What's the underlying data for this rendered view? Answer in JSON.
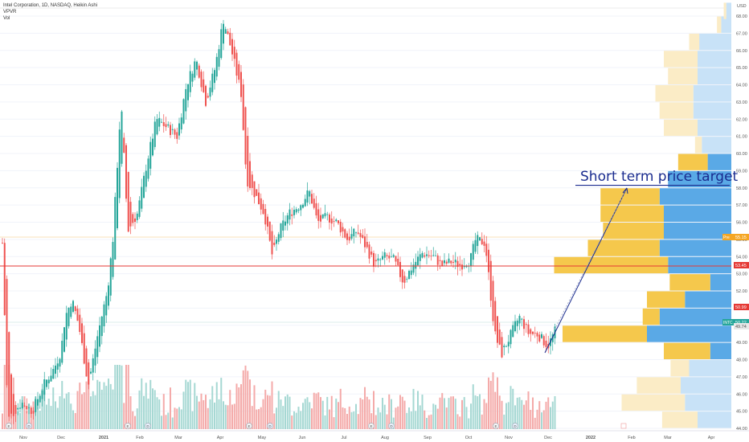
{
  "legend": {
    "symbol_line": "Intel Corporation, 1D, NASDAQ, Heikin Ashi",
    "indicator_1": "VPVR",
    "indicator_2": "Vol"
  },
  "annotation": {
    "text": "Short term price target",
    "color": "#1a2c8f"
  },
  "colors": {
    "up": "#26a69a",
    "down": "#ef5350",
    "up_volume": "#a6d8d3",
    "down_volume": "#f4aaa9",
    "vp_up": "#5aa9e6",
    "vp_down": "#f5c84c",
    "vp_up_faded": "#c8e2f7",
    "vp_down_faded": "#fbecc6",
    "support_line": "#e53935",
    "target_line": "#1a2c8f"
  },
  "chart_data": {
    "type": "candlestick",
    "title": "Intel Corporation, 1D, NASDAQ, Heikin Ashi",
    "y_axis": {
      "unit_label": "USD",
      "ticks": [
        "44.00",
        "45.00",
        "46.00",
        "47.00",
        "48.00",
        "49.00",
        "50.00",
        "51.00",
        "52.00",
        "53.00",
        "54.00",
        "55.00",
        "56.00",
        "57.00",
        "58.00",
        "59.00",
        "60.00",
        "61.00",
        "62.00",
        "63.00",
        "64.00",
        "65.00",
        "66.00",
        "67.00",
        "68.00"
      ],
      "range": [
        43.7,
        68.6
      ]
    },
    "x_axis": {
      "ticks": [
        "Nov",
        "Dec",
        "2021",
        "Feb",
        "Mar",
        "Apr",
        "May",
        "Jun",
        "Jul",
        "Aug",
        "Sep",
        "Oct",
        "Nov",
        "Dec",
        "2022",
        "Feb",
        "Mar",
        "Apr"
      ]
    },
    "price_markers": [
      {
        "label": "Pre",
        "value": "55.15",
        "color": "#f5a623"
      },
      {
        "label": "",
        "value": "53.45",
        "color": "#e53935"
      },
      {
        "label": "",
        "value": "50.99",
        "color": "#e53935"
      },
      {
        "label": "INTC",
        "value": "50.22",
        "color": "#26a69a"
      },
      {
        "label": "",
        "value": "49.74",
        "color": "#e8e8e8"
      }
    ],
    "support_level": 53.45,
    "target_level": 58.15,
    "price_path": [
      [
        "2020-10-26",
        54.8
      ],
      [
        "2020-10-30",
        44.5
      ],
      [
        "2020-11-09",
        45.5
      ],
      [
        "2020-11-17",
        45.0
      ],
      [
        "2020-11-25",
        46.5
      ],
      [
        "2020-12-03",
        47.5
      ],
      [
        "2020-12-08",
        48.5
      ],
      [
        "2020-12-11",
        50.5
      ],
      [
        "2020-12-16",
        51.5
      ],
      [
        "2020-12-21",
        50.0
      ],
      [
        "2020-12-28",
        46.5
      ],
      [
        "2021-01-04",
        49.5
      ],
      [
        "2021-01-11",
        52.0
      ],
      [
        "2021-01-15",
        55.0
      ],
      [
        "2021-01-21",
        63.0
      ],
      [
        "2021-01-26",
        55.5
      ],
      [
        "2021-02-02",
        56.5
      ],
      [
        "2021-02-09",
        59.5
      ],
      [
        "2021-02-16",
        62.0
      ],
      [
        "2021-02-24",
        61.5
      ],
      [
        "2021-03-03",
        61.0
      ],
      [
        "2021-03-10",
        64.0
      ],
      [
        "2021-03-17",
        65.5
      ],
      [
        "2021-03-24",
        63.0
      ],
      [
        "2021-03-31",
        65.0
      ],
      [
        "2021-04-06",
        67.8
      ],
      [
        "2021-04-12",
        66.0
      ],
      [
        "2021-04-19",
        63.5
      ],
      [
        "2021-04-23",
        58.5
      ],
      [
        "2021-04-30",
        57.5
      ],
      [
        "2021-05-06",
        56.5
      ],
      [
        "2021-05-12",
        54.0
      ],
      [
        "2021-05-17",
        55.5
      ],
      [
        "2021-05-24",
        56.5
      ],
      [
        "2021-06-01",
        57.0
      ],
      [
        "2021-06-08",
        57.8
      ],
      [
        "2021-06-14",
        56.0
      ],
      [
        "2021-06-21",
        56.3
      ],
      [
        "2021-06-28",
        56.0
      ],
      [
        "2021-07-06",
        55.0
      ],
      [
        "2021-07-13",
        55.5
      ],
      [
        "2021-07-20",
        54.5
      ],
      [
        "2021-07-26",
        53.5
      ],
      [
        "2021-08-02",
        54.0
      ],
      [
        "2021-08-09",
        53.8
      ],
      [
        "2021-08-16",
        52.5
      ],
      [
        "2021-08-23",
        53.5
      ],
      [
        "2021-08-30",
        54.2
      ],
      [
        "2021-09-07",
        54.0
      ],
      [
        "2021-09-13",
        53.5
      ],
      [
        "2021-09-20",
        53.7
      ],
      [
        "2021-09-27",
        53.5
      ],
      [
        "2021-10-04",
        53.8
      ],
      [
        "2021-10-08",
        55.0
      ],
      [
        "2021-10-15",
        54.8
      ],
      [
        "2021-10-22",
        49.5
      ],
      [
        "2021-10-27",
        48.3
      ],
      [
        "2021-11-03",
        49.5
      ],
      [
        "2021-11-09",
        50.5
      ],
      [
        "2021-11-16",
        49.5
      ],
      [
        "2021-11-22",
        49.5
      ],
      [
        "2021-11-30",
        48.8
      ],
      [
        "2021-12-06",
        49.8
      ]
    ],
    "volume_profile": [
      {
        "price": 44.5,
        "up": 40,
        "down": 42,
        "faded": true
      },
      {
        "price": 45.5,
        "up": 55,
        "down": 75,
        "faded": true
      },
      {
        "price": 46.5,
        "up": 60,
        "down": 52,
        "faded": true
      },
      {
        "price": 47.5,
        "up": 50,
        "down": 22,
        "faded": true
      },
      {
        "price": 48.5,
        "up": 25,
        "down": 55,
        "faded": false
      },
      {
        "price": 49.5,
        "up": 100,
        "down": 100,
        "faded": false
      },
      {
        "price": 50.5,
        "up": 85,
        "down": 20,
        "faded": false
      },
      {
        "price": 51.5,
        "up": 55,
        "down": 45,
        "faded": false
      },
      {
        "price": 52.5,
        "up": 25,
        "down": 48,
        "faded": false
      },
      {
        "price": 53.5,
        "up": 75,
        "down": 135,
        "faded": false
      },
      {
        "price": 54.5,
        "up": 85,
        "down": 85,
        "faded": false
      },
      {
        "price": 55.5,
        "up": 80,
        "down": 72,
        "faded": false
      },
      {
        "price": 56.5,
        "up": 80,
        "down": 75,
        "faded": false
      },
      {
        "price": 57.5,
        "up": 85,
        "down": 70,
        "faded": false
      },
      {
        "price": 58.5,
        "up": 75,
        "down": 0,
        "faded": false
      },
      {
        "price": 59.5,
        "up": 28,
        "down": 35,
        "faded": false
      },
      {
        "price": 60.5,
        "up": 35,
        "down": 8,
        "faded": true
      },
      {
        "price": 61.5,
        "up": 40,
        "down": 40,
        "faded": true
      },
      {
        "price": 62.5,
        "up": 45,
        "down": 40,
        "faded": true
      },
      {
        "price": 63.5,
        "up": 45,
        "down": 45,
        "faded": true
      },
      {
        "price": 64.5,
        "up": 40,
        "down": 35,
        "faded": true
      },
      {
        "price": 65.5,
        "up": 40,
        "down": 40,
        "faded": true
      },
      {
        "price": 66.5,
        "up": 38,
        "down": 12,
        "faded": true
      },
      {
        "price": 67.5,
        "up": 12,
        "down": 5,
        "faded": true
      },
      {
        "price": 68.3,
        "up": 6,
        "down": 3,
        "faded": true
      }
    ]
  }
}
